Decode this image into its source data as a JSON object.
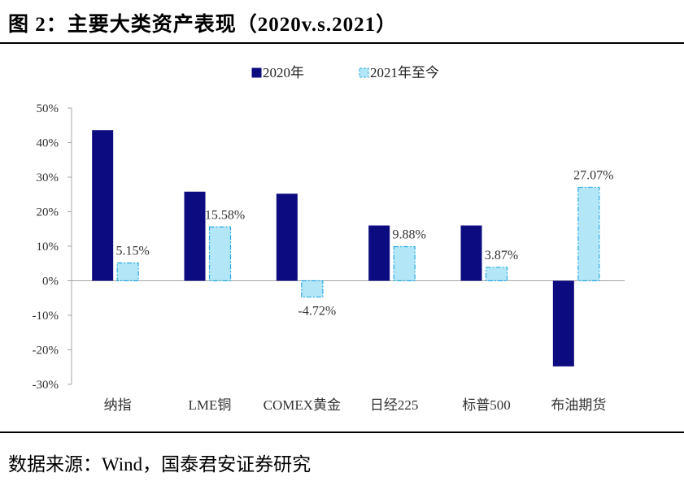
{
  "figure": {
    "title": "图 2：主要大类资产表现（2020v.s.2021）",
    "source": "数据来源：Wind，国泰君安证券研究"
  },
  "colors": {
    "series_2020": "#0c0c80",
    "series_2021_fill": "#b3e6f7",
    "series_2021_stroke": "#29abe2",
    "axis": "#a6a6a6"
  },
  "chart_data": {
    "type": "bar",
    "categories": [
      "纳指",
      "LME铜",
      "COMEX黄金",
      "日经225",
      "标普500",
      "布油期货"
    ],
    "series": [
      {
        "name": "2020年",
        "values": [
          43.6,
          25.8,
          25.2,
          16.0,
          16.0,
          -24.8
        ]
      },
      {
        "name": "2021年至今",
        "values": [
          5.15,
          15.58,
          -4.72,
          9.88,
          3.87,
          27.07
        ],
        "data_labels": [
          "5.15%",
          "15.58%",
          "-4.72%",
          "9.88%",
          "3.87%",
          "27.07%"
        ]
      }
    ],
    "ylim": [
      -30,
      50
    ],
    "yticks": [
      -30,
      -20,
      -10,
      0,
      10,
      20,
      30,
      40,
      50
    ],
    "ytick_labels": [
      "-30%",
      "-20%",
      "-10%",
      "0%",
      "10%",
      "20%",
      "30%",
      "40%",
      "50%"
    ],
    "legend": "top-center",
    "grid": false
  }
}
